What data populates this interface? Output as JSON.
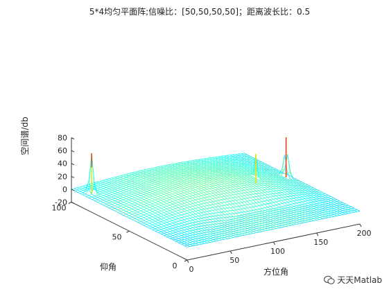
{
  "chart_data": {
    "type": "surface",
    "title": "5*4均匀平面阵;信噪比：[50,50,50,50]；距离波长比：0.5",
    "xlabel": "方位角",
    "ylabel": "仰角",
    "zlabel": "空间谱/db",
    "xlim": [
      0,
      200
    ],
    "ylim": [
      0,
      100
    ],
    "zlim": [
      -20,
      80
    ],
    "x_ticks": [
      "0",
      "50",
      "100",
      "150",
      "200"
    ],
    "y_ticks": [
      "0",
      "50",
      "100"
    ],
    "z_ticks": [
      "-20",
      "0",
      "20",
      "40",
      "60",
      "80"
    ],
    "colormap": "jet (surface wireframe, blue-dominant)",
    "peaks": [
      {
        "azimuth": 10,
        "elevation": 90,
        "height_db": 62
      },
      {
        "azimuth": 10,
        "elevation": 90,
        "height_db": 40
      },
      {
        "azimuth": 160,
        "elevation": 60,
        "height_db": 46
      },
      {
        "azimuth": 195,
        "elevation": 60,
        "height_db": 62
      }
    ],
    "background_floor_db": 0,
    "min_db": -20,
    "grid": false
  },
  "watermark": {
    "text": "天天Matlab",
    "icon": "wechat-logo-icon"
  }
}
